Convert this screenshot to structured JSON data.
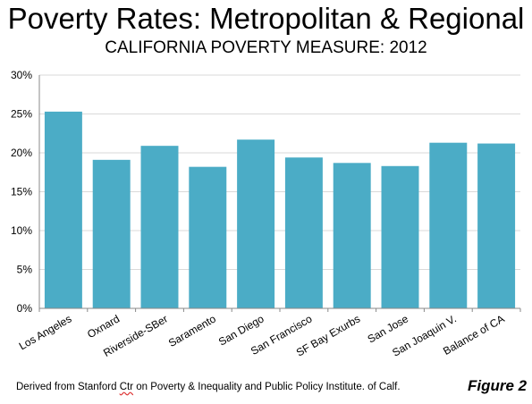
{
  "header": {
    "title": "Poverty Rates: Metropolitan & Regional",
    "subtitle": "CALIFORNIA POVERTY MEASURE: 2012"
  },
  "footer": {
    "source_prefix": "Derived from Stanford ",
    "source_ctr": "Ctr",
    "source_suffix": " on Poverty & Inequality and Public Policy Institute. of Calf.",
    "figure_label": "Figure 2"
  },
  "colors": {
    "bar": "#4bacc6",
    "gridline": "#d9d9d9",
    "axis": "#888888"
  },
  "chart_data": {
    "type": "bar",
    "categories": [
      "Los Angeles",
      "Oxnard",
      "Riverside-SBer",
      "Saramento",
      "San Diego",
      "San Francisco",
      "SF Bay Exurbs",
      "San Jose",
      "San Joaquin V.",
      "Balance of CA"
    ],
    "values": [
      25.3,
      19.1,
      20.9,
      18.2,
      21.7,
      19.4,
      18.7,
      18.3,
      21.3,
      21.2
    ],
    "ylim": [
      0,
      30
    ],
    "yticks": [
      0,
      5,
      10,
      15,
      20,
      25,
      30
    ],
    "ytick_labels": [
      "0%",
      "5%",
      "10%",
      "15%",
      "20%",
      "25%",
      "30%"
    ],
    "grid": true
  }
}
